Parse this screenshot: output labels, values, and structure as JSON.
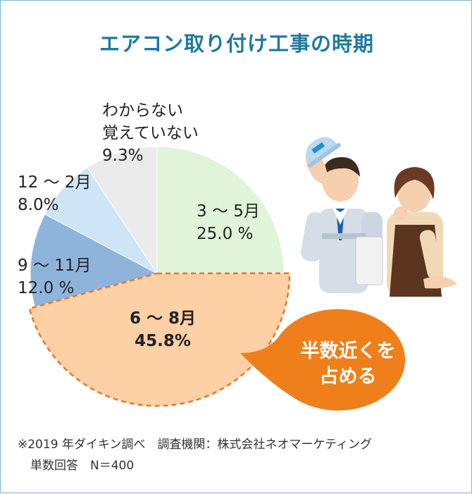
{
  "title": "エアコン取り付け工事の時期",
  "chart_data": {
    "type": "pie",
    "title": "エアコン取り付け工事の時期",
    "slices": [
      {
        "label": "3 ～ 5月",
        "value_label": "25.0 %",
        "value": 25.0,
        "color": "#dff4d8"
      },
      {
        "label": "6 ～ 8月",
        "value_label": "45.8%",
        "value": 45.8,
        "color": "#fdd0a5"
      },
      {
        "label": "9 ～ 11月",
        "value_label": "12.0 %",
        "value": 12.0,
        "color": "#8fb4dc"
      },
      {
        "label": "12 ～ 2月",
        "value_label": "8.0%",
        "value": 8.0,
        "color": "#cde5f7"
      },
      {
        "label": "わからない\n覚えていない",
        "label_line1": "わからない",
        "label_line2": "覚えていない",
        "value_label": "9.3%",
        "value": 9.3,
        "color": "#ebebeb"
      }
    ],
    "highlighted": "6 ～ 8月"
  },
  "callout": {
    "line1": "半数近くを",
    "line2": "占める",
    "color": "#ef7f1a"
  },
  "note": {
    "line1": "※2019 年ダイキン調べ　調査機関：株式会社ネオマーケティング",
    "line2": "単数回答　N＝400"
  },
  "colors": {
    "title": "#1e7aa0",
    "border": "#7bb6dc",
    "highlight_outline": "#e8762a"
  }
}
